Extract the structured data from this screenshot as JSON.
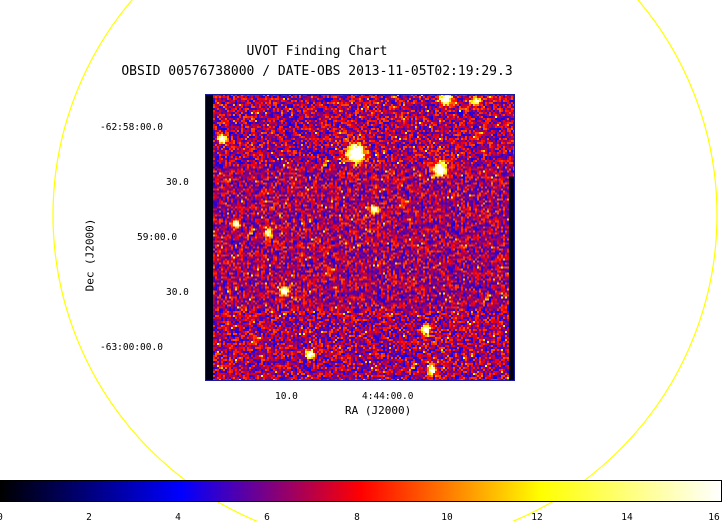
{
  "chart_data": {
    "type": "heatmap",
    "title": "UVOT Finding Chart",
    "subtitle": "OBSID 00576738000 / DATE-OBS 2013-11-05T02:19:29.3",
    "xlabel": "RA (J2000)",
    "ylabel": "Dec (J2000)",
    "x_tick_labels": [
      "10.0",
      "4:44:00.0"
    ],
    "y_tick_labels": [
      "-62:58:00.0",
      "30.0",
      "59:00.0",
      "30.0",
      "-63:00:00.0"
    ],
    "colorbar": {
      "ticks": [
        "0",
        "2",
        "4",
        "6",
        "8",
        "10",
        "12",
        "14",
        "16"
      ],
      "range": [
        0,
        16
      ],
      "colormap": [
        "#000000",
        "#0000ff",
        "#ff0000",
        "#ffff00",
        "#ffffff"
      ]
    },
    "overlay_circle_color": "#ffff00"
  }
}
